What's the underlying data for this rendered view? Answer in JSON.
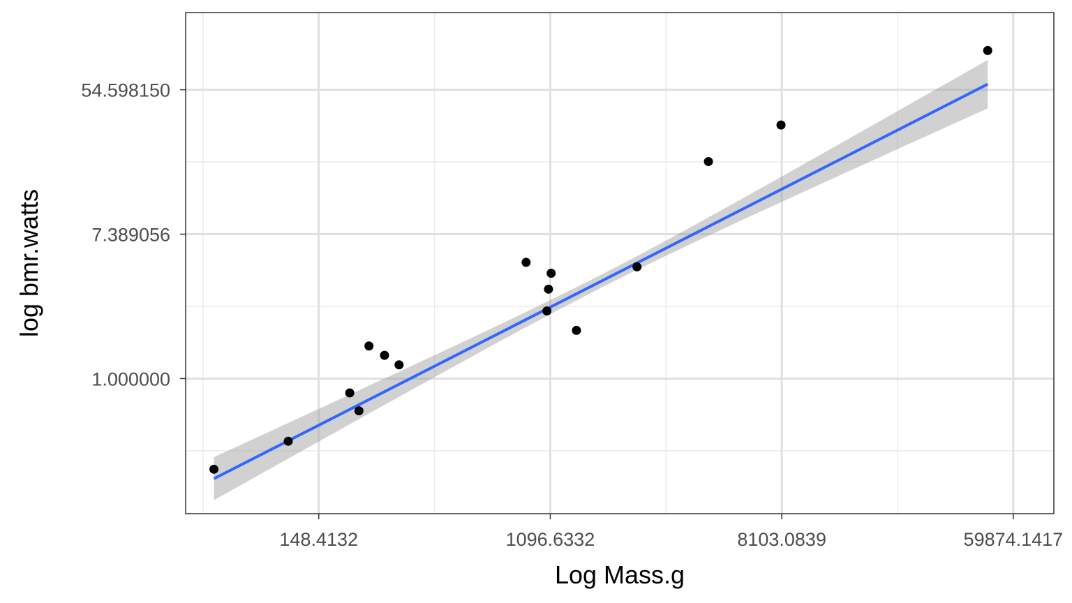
{
  "chart_data": {
    "type": "scatter",
    "title": "",
    "xlabel": "Log Mass.g",
    "ylabel": "log bmr.watts",
    "x_scale": "log",
    "y_scale": "log",
    "xlim": [
      47,
      85000
    ],
    "ylim": [
      0.154,
      159
    ],
    "x_ticks": [
      148.4132,
      1096.6332,
      8103.0839,
      59874.1417
    ],
    "x_tick_labels": [
      "148.4132",
      "1096.6332",
      "8103.0839",
      "59874.1417"
    ],
    "y_ticks": [
      1.0,
      7.389056,
      54.59815
    ],
    "y_tick_labels": [
      "1.000000",
      "7.389056",
      "54.598150"
    ],
    "points": [
      {
        "x": 60,
        "y": 0.285
      },
      {
        "x": 114,
        "y": 0.42
      },
      {
        "x": 194,
        "y": 0.82
      },
      {
        "x": 210,
        "y": 0.64
      },
      {
        "x": 229,
        "y": 1.57
      },
      {
        "x": 262,
        "y": 1.38
      },
      {
        "x": 297,
        "y": 1.21
      },
      {
        "x": 890,
        "y": 5.0
      },
      {
        "x": 1065,
        "y": 2.55
      },
      {
        "x": 1080,
        "y": 3.45
      },
      {
        "x": 1105,
        "y": 4.3
      },
      {
        "x": 1375,
        "y": 1.95
      },
      {
        "x": 2320,
        "y": 4.7
      },
      {
        "x": 4300,
        "y": 20.2
      },
      {
        "x": 8050,
        "y": 33.5
      },
      {
        "x": 48000,
        "y": 94.0
      }
    ],
    "fit": {
      "type": "lm",
      "color": "#3366ff",
      "band_color": "#999999",
      "x_start": 60,
      "x_end": 48000,
      "y_start": 0.25,
      "y_end": 59.0,
      "band_start": [
        0.185,
        0.336
      ],
      "band_end": [
        42.2,
        82.5
      ]
    },
    "point_color": "#000000",
    "grid": true,
    "theme": "bw"
  }
}
